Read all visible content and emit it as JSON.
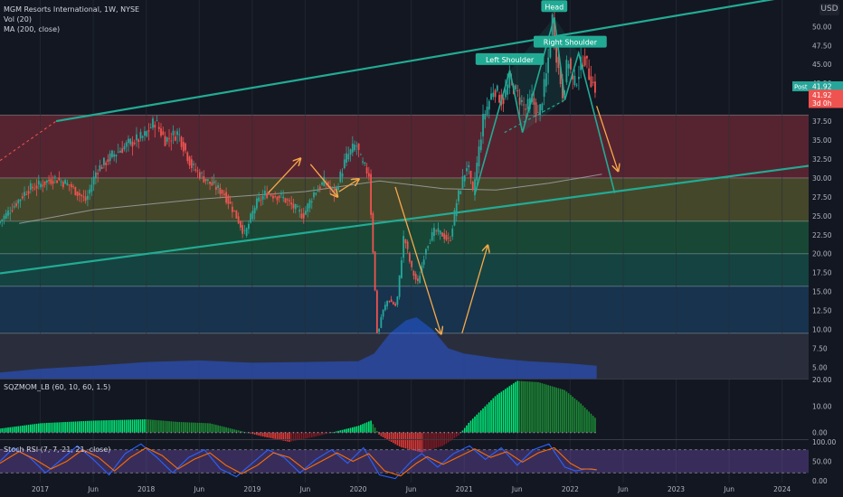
{
  "title": {
    "symbol_line": "MGM Resorts International, 1W, NYSE",
    "vol_line": "Vol (20)",
    "ma_line": "MA (200, close)",
    "menu_label": "USD"
  },
  "chart_data": [
    {
      "type": "candlestick",
      "name": "main",
      "ylim": [
        3.5,
        53.5
      ],
      "yticks": [
        5.0,
        7.5,
        10.0,
        12.5,
        15.0,
        17.5,
        20.0,
        22.5,
        25.0,
        27.5,
        30.0,
        32.5,
        35.0,
        37.5,
        40.0,
        42.5,
        45.0,
        47.5,
        50.0
      ],
      "ytick_labels": [
        "5.00",
        "7.50",
        "10.00",
        "12.50",
        "15.00",
        "17.50",
        "20.00",
        "22.50",
        "25.00",
        "27.50",
        "30.00",
        "32.50",
        "35.00",
        "37.50",
        "40.00",
        "42.50",
        "45.00",
        "47.50",
        "50.00"
      ],
      "xlim": [
        2016.62,
        2024.25
      ],
      "xticks": [
        {
          "t": 2017.0,
          "label": "2017"
        },
        {
          "t": 2017.5,
          "label": "Jun"
        },
        {
          "t": 2018.0,
          "label": "2018"
        },
        {
          "t": 2018.5,
          "label": "Jun"
        },
        {
          "t": 2019.0,
          "label": "2019"
        },
        {
          "t": 2019.5,
          "label": "Jun"
        },
        {
          "t": 2020.0,
          "label": "2020"
        },
        {
          "t": 2020.5,
          "label": "Jun"
        },
        {
          "t": 2021.0,
          "label": "2021"
        },
        {
          "t": 2021.5,
          "label": "Jun"
        },
        {
          "t": 2022.0,
          "label": "2022"
        },
        {
          "t": 2022.5,
          "label": "Jun"
        },
        {
          "t": 2023.0,
          "label": "2023"
        },
        {
          "t": 2023.5,
          "label": "Jun"
        },
        {
          "t": 2024.0,
          "label": "2024"
        }
      ],
      "price_path": [
        [
          2016.62,
          24.0
        ],
        [
          2016.75,
          26.0
        ],
        [
          2016.9,
          28.5
        ],
        [
          2017.0,
          29.0
        ],
        [
          2017.15,
          30.0
        ],
        [
          2017.3,
          29.0
        ],
        [
          2017.45,
          27.0
        ],
        [
          2017.55,
          31.0
        ],
        [
          2017.7,
          33.0
        ],
        [
          2017.85,
          34.5
        ],
        [
          2018.0,
          35.5
        ],
        [
          2018.1,
          37.5
        ],
        [
          2018.2,
          35.0
        ],
        [
          2018.32,
          36.0
        ],
        [
          2018.45,
          31.5
        ],
        [
          2018.6,
          29.5
        ],
        [
          2018.75,
          28.0
        ],
        [
          2018.85,
          25.5
        ],
        [
          2018.95,
          22.5
        ],
        [
          2019.05,
          26.5
        ],
        [
          2019.15,
          28.0
        ],
        [
          2019.3,
          27.5
        ],
        [
          2019.42,
          26.0
        ],
        [
          2019.5,
          25.0
        ],
        [
          2019.6,
          28.0
        ],
        [
          2019.7,
          29.5
        ],
        [
          2019.8,
          28.0
        ],
        [
          2019.9,
          32.5
        ],
        [
          2020.0,
          34.5
        ],
        [
          2020.05,
          32.0
        ],
        [
          2020.12,
          30.5
        ],
        [
          2020.16,
          20.0
        ],
        [
          2020.2,
          8.8
        ],
        [
          2020.24,
          12.0
        ],
        [
          2020.3,
          14.0
        ],
        [
          2020.38,
          13.0
        ],
        [
          2020.45,
          22.5
        ],
        [
          2020.52,
          18.0
        ],
        [
          2020.58,
          16.0
        ],
        [
          2020.66,
          21.0
        ],
        [
          2020.74,
          23.0
        ],
        [
          2020.82,
          22.5
        ],
        [
          2020.88,
          21.5
        ],
        [
          2020.95,
          27.0
        ],
        [
          2021.0,
          29.5
        ],
        [
          2021.05,
          32.0
        ],
        [
          2021.1,
          27.8
        ],
        [
          2021.2,
          38.0
        ],
        [
          2021.3,
          42.0
        ],
        [
          2021.38,
          40.0
        ],
        [
          2021.45,
          43.0
        ],
        [
          2021.52,
          41.0
        ],
        [
          2021.6,
          39.0
        ],
        [
          2021.66,
          40.5
        ],
        [
          2021.72,
          38.0
        ],
        [
          2021.8,
          44.0
        ],
        [
          2021.85,
          51.2
        ],
        [
          2021.9,
          45.0
        ],
        [
          2021.95,
          41.0
        ],
        [
          2022.0,
          46.0
        ],
        [
          2022.05,
          42.0
        ],
        [
          2022.1,
          44.0
        ],
        [
          2022.15,
          46.3
        ],
        [
          2022.2,
          43.5
        ],
        [
          2022.25,
          41.9
        ]
      ],
      "zones": [
        {
          "from": 30.0,
          "to": 38.3,
          "color": "#b33746"
        },
        {
          "from": 24.3,
          "to": 30.0,
          "color": "#8a8a3a"
        },
        {
          "from": 20.0,
          "to": 24.3,
          "color": "#1e8c50"
        },
        {
          "from": 15.7,
          "to": 20.0,
          "color": "#17806e"
        },
        {
          "from": 9.5,
          "to": 15.7,
          "color": "#1d5a8c"
        },
        {
          "from": 3.5,
          "to": 9.5,
          "color": "#4a4f62"
        }
      ],
      "hlines": [
        38.3,
        30.0,
        24.3,
        20.0,
        15.7,
        9.5
      ],
      "channel_upper": [
        [
          2017.15,
          37.5
        ],
        [
          2024.0,
          53.8
        ]
      ],
      "channel_lower": [
        [
          2016.62,
          17.4
        ],
        [
          2024.25,
          31.6
        ]
      ],
      "channel_dashed": [
        [
          2016.62,
          32.3
        ],
        [
          2017.15,
          37.5
        ]
      ],
      "ma200": [
        [
          2016.8,
          24.0
        ],
        [
          2017.5,
          25.8
        ],
        [
          2018.5,
          27.2
        ],
        [
          2019.5,
          28.2
        ],
        [
          2020.2,
          29.6
        ],
        [
          2020.8,
          28.6
        ],
        [
          2021.3,
          28.4
        ],
        [
          2021.8,
          29.3
        ],
        [
          2022.3,
          30.5
        ]
      ],
      "neckline": [
        [
          2021.38,
          36.0
        ],
        [
          2021.95,
          40.3
        ]
      ],
      "forecast_line": [
        [
          2022.1,
          41.5
        ],
        [
          2022.42,
          28.0
        ]
      ],
      "arrows": [
        [
          [
            2019.15,
            28.0
          ],
          [
            2019.45,
            32.5
          ]
        ],
        [
          [
            2019.55,
            31.8
          ],
          [
            2019.8,
            27.6
          ]
        ],
        [
          [
            2019.82,
            28.2
          ],
          [
            2020.0,
            29.8
          ]
        ],
        [
          [
            2020.35,
            28.8
          ],
          [
            2020.78,
            9.5
          ]
        ],
        [
          [
            2020.98,
            9.5
          ],
          [
            2021.22,
            21.0
          ]
        ],
        [
          [
            2022.25,
            39.5
          ],
          [
            2022.45,
            31.0
          ]
        ]
      ],
      "annotations": [
        {
          "text": "Head",
          "t": 2021.85,
          "y": 51.2,
          "dir": "up"
        },
        {
          "text": "Left Shoulder",
          "t": 2021.43,
          "y": 44.2,
          "dir": "up"
        },
        {
          "text": "Right Shoulder",
          "t": 2022.0,
          "y": 46.5,
          "dir": "up"
        }
      ],
      "price_tags": [
        {
          "text": "Post",
          "value": "41.92",
          "color": "#26a69a",
          "y": 42.1
        },
        {
          "text": "",
          "value": "41.92",
          "color": "#ef5350",
          "y": 41.0
        },
        {
          "text": "",
          "value": "3d 0h",
          "color": "#ef5350",
          "y": 39.9
        }
      ],
      "volume_profile": [
        [
          2016.62,
          4.3
        ],
        [
          2017.0,
          4.8
        ],
        [
          2017.5,
          5.2
        ],
        [
          2018.0,
          5.7
        ],
        [
          2018.5,
          5.9
        ],
        [
          2019.0,
          5.6
        ],
        [
          2019.5,
          5.7
        ],
        [
          2020.0,
          5.8
        ],
        [
          2020.15,
          6.8
        ],
        [
          2020.3,
          9.5
        ],
        [
          2020.45,
          11.2
        ],
        [
          2020.55,
          11.6
        ],
        [
          2020.7,
          10.0
        ],
        [
          2020.85,
          7.5
        ],
        [
          2021.0,
          6.8
        ],
        [
          2021.3,
          6.2
        ],
        [
          2021.6,
          5.8
        ],
        [
          2022.0,
          5.5
        ],
        [
          2022.25,
          5.2
        ]
      ]
    },
    {
      "type": "histogram",
      "name": "SQZMOM_LB (60, 10, 60, 1.5)",
      "ylim": [
        -2.5,
        20.0
      ],
      "yticks": [
        0.0,
        10.0,
        20.0
      ],
      "ytick_labels": [
        "0.00",
        "10.00",
        "20.00"
      ],
      "profile": [
        [
          2016.62,
          1.5
        ],
        [
          2017.0,
          3.5
        ],
        [
          2017.5,
          4.5
        ],
        [
          2018.0,
          5.0
        ],
        [
          2018.3,
          4.0
        ],
        [
          2018.6,
          3.5
        ],
        [
          2018.9,
          0.5
        ],
        [
          2019.1,
          -1.5
        ],
        [
          2019.35,
          -3.5
        ],
        [
          2019.6,
          -1.5
        ],
        [
          2019.8,
          0.5
        ],
        [
          2020.0,
          2.5
        ],
        [
          2020.12,
          4.5
        ],
        [
          2020.2,
          -1.0
        ],
        [
          2020.4,
          -5.5
        ],
        [
          2020.6,
          -7.5
        ],
        [
          2020.8,
          -5.0
        ],
        [
          2020.95,
          -1.0
        ],
        [
          2021.05,
          4.0
        ],
        [
          2021.3,
          14.0
        ],
        [
          2021.5,
          19.5
        ],
        [
          2021.7,
          19.0
        ],
        [
          2021.95,
          16.0
        ],
        [
          2022.1,
          11.0
        ],
        [
          2022.25,
          5.0
        ]
      ]
    },
    {
      "type": "line",
      "name": "Stoch RSI (7, 7, 21, 21, close)",
      "ylim": [
        -5,
        105
      ],
      "yticks": [
        0,
        50,
        100
      ],
      "ytick_labels": [
        "0.00",
        "50.00",
        "100.00"
      ],
      "band": [
        20,
        80
      ],
      "k": [
        [
          2016.62,
          50
        ],
        [
          2016.75,
          85
        ],
        [
          2016.9,
          60
        ],
        [
          2017.05,
          20
        ],
        [
          2017.2,
          55
        ],
        [
          2017.35,
          90
        ],
        [
          2017.5,
          55
        ],
        [
          2017.65,
          15
        ],
        [
          2017.8,
          70
        ],
        [
          2017.95,
          95
        ],
        [
          2018.1,
          60
        ],
        [
          2018.25,
          20
        ],
        [
          2018.4,
          60
        ],
        [
          2018.55,
          80
        ],
        [
          2018.7,
          30
        ],
        [
          2018.85,
          10
        ],
        [
          2019.0,
          45
        ],
        [
          2019.15,
          80
        ],
        [
          2019.3,
          60
        ],
        [
          2019.45,
          20
        ],
        [
          2019.6,
          55
        ],
        [
          2019.75,
          80
        ],
        [
          2019.9,
          45
        ],
        [
          2020.05,
          85
        ],
        [
          2020.2,
          15
        ],
        [
          2020.35,
          5
        ],
        [
          2020.5,
          50
        ],
        [
          2020.6,
          70
        ],
        [
          2020.75,
          35
        ],
        [
          2020.9,
          70
        ],
        [
          2021.05,
          90
        ],
        [
          2021.2,
          55
        ],
        [
          2021.35,
          85
        ],
        [
          2021.5,
          40
        ],
        [
          2021.65,
          80
        ],
        [
          2021.8,
          95
        ],
        [
          2021.95,
          35
        ],
        [
          2022.05,
          25
        ],
        [
          2022.15,
          30
        ],
        [
          2022.25,
          28
        ]
      ],
      "d": [
        [
          2016.62,
          45
        ],
        [
          2016.8,
          75
        ],
        [
          2016.95,
          55
        ],
        [
          2017.1,
          30
        ],
        [
          2017.25,
          50
        ],
        [
          2017.4,
          80
        ],
        [
          2017.55,
          60
        ],
        [
          2017.7,
          25
        ],
        [
          2017.85,
          60
        ],
        [
          2018.0,
          85
        ],
        [
          2018.15,
          65
        ],
        [
          2018.3,
          30
        ],
        [
          2018.45,
          55
        ],
        [
          2018.6,
          72
        ],
        [
          2018.75,
          40
        ],
        [
          2018.9,
          18
        ],
        [
          2019.05,
          40
        ],
        [
          2019.2,
          72
        ],
        [
          2019.35,
          60
        ],
        [
          2019.5,
          28
        ],
        [
          2019.65,
          50
        ],
        [
          2019.8,
          72
        ],
        [
          2019.95,
          50
        ],
        [
          2020.1,
          70
        ],
        [
          2020.25,
          25
        ],
        [
          2020.4,
          12
        ],
        [
          2020.55,
          45
        ],
        [
          2020.65,
          62
        ],
        [
          2020.8,
          42
        ],
        [
          2020.95,
          62
        ],
        [
          2021.1,
          82
        ],
        [
          2021.25,
          60
        ],
        [
          2021.4,
          75
        ],
        [
          2021.55,
          48
        ],
        [
          2021.7,
          72
        ],
        [
          2021.85,
          85
        ],
        [
          2022.0,
          45
        ],
        [
          2022.1,
          30
        ],
        [
          2022.2,
          30
        ],
        [
          2022.25,
          28
        ]
      ]
    }
  ]
}
